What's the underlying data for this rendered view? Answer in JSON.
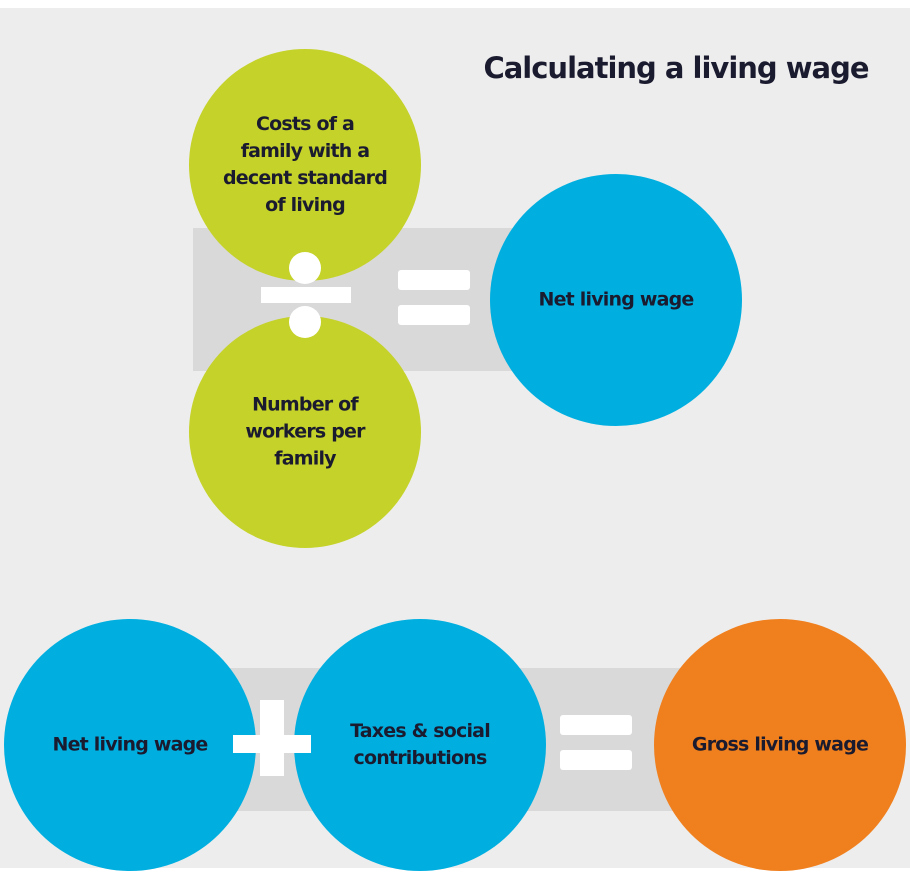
{
  "title": "Calculating a living wage",
  "nodes": [
    {
      "lines": [
        "Costs of a",
        "family with a",
        "decent standard",
        "of living"
      ]
    },
    {
      "lines": [
        "Number of",
        "workers per",
        "family"
      ]
    },
    {
      "lines": [
        "Net living wage"
      ]
    },
    {
      "lines": [
        "Net living wage"
      ]
    },
    {
      "lines": [
        "Taxes & social",
        "contributions"
      ]
    },
    {
      "lines": [
        "Gross living wage"
      ]
    }
  ]
}
